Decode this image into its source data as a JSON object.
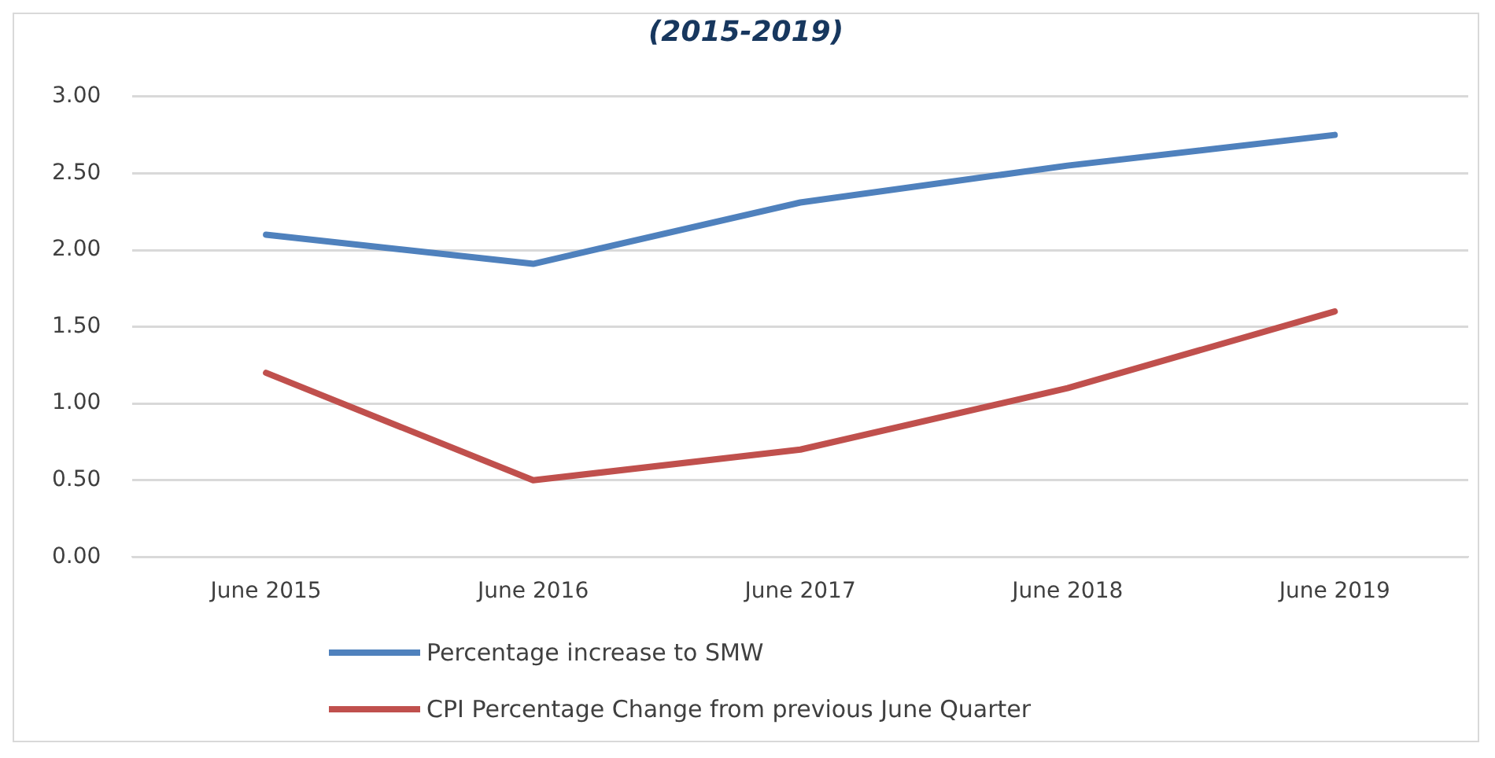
{
  "chart_data": {
    "type": "line",
    "title": "(2015-2019)",
    "categories": [
      "June 2015",
      "June 2016",
      "June 2017",
      "June 2018",
      "June 2019"
    ],
    "series": [
      {
        "name": "Percentage increase to SMW",
        "color": "#4f81bd",
        "values": [
          2.1,
          1.91,
          2.31,
          2.55,
          2.75
        ]
      },
      {
        "name": "CPI Percentage Change from previous June Quarter",
        "color": "#c0504d",
        "values": [
          1.2,
          0.5,
          0.7,
          1.1,
          1.6
        ]
      }
    ],
    "ylim": [
      0,
      3
    ],
    "yticks": [
      {
        "value": 0,
        "label": "0.00"
      },
      {
        "value": 0.5,
        "label": "0.50"
      },
      {
        "value": 1,
        "label": "1.00"
      },
      {
        "value": 1.5,
        "label": "1.50"
      },
      {
        "value": 2,
        "label": "2.00"
      },
      {
        "value": 2.5,
        "label": "2.50"
      },
      {
        "value": 3,
        "label": "3.00"
      }
    ],
    "grid": "y",
    "legend": "bottom",
    "marker": "none",
    "line_style": "solid"
  }
}
